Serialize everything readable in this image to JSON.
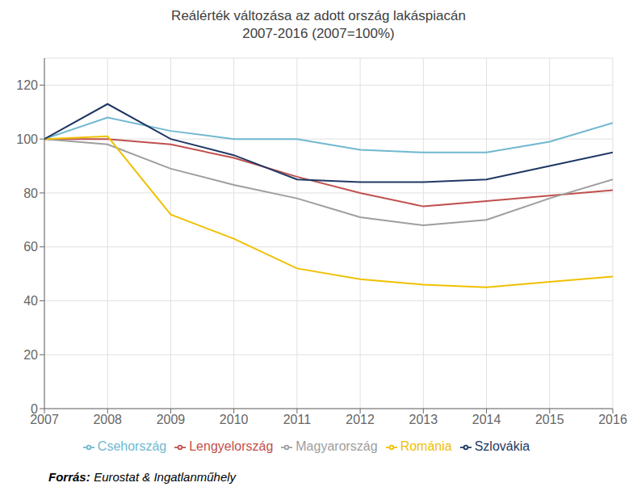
{
  "chart_data": {
    "type": "line",
    "title": "Reálérték változása az adott ország lakáspiacán\n2007-2016 (2007=100%)",
    "x": [
      2007,
      2008,
      2009,
      2010,
      2011,
      2012,
      2013,
      2014,
      2015,
      2016
    ],
    "xlim": [
      2007,
      2016
    ],
    "xticks": [
      2007,
      2008,
      2009,
      2010,
      2011,
      2012,
      2013,
      2014,
      2015,
      2016
    ],
    "series": [
      {
        "name": "Csehország",
        "color": "#70B8D0",
        "values": [
          100,
          108,
          103,
          100,
          100,
          96,
          95,
          95,
          99,
          106
        ]
      },
      {
        "name": "Lengyelország",
        "color": "#C0504D",
        "values": [
          100,
          100,
          98,
          93,
          86,
          80,
          75,
          77,
          79,
          81
        ]
      },
      {
        "name": "Magyarország",
        "color": "#9E9E9E",
        "values": [
          100,
          98,
          89,
          83,
          78,
          71,
          68,
          70,
          78,
          85
        ]
      },
      {
        "name": "Románia",
        "color": "#F0C000",
        "values": [
          100,
          101,
          72,
          63,
          52,
          48,
          46,
          45,
          47,
          49
        ]
      },
      {
        "name": "Szlovákia",
        "color": "#1F3864",
        "values": [
          100,
          113,
          100,
          94,
          85,
          84,
          84,
          85,
          90,
          95
        ]
      }
    ],
    "ylim": [
      0,
      130
    ],
    "yticks": [
      0,
      20,
      40,
      60,
      80,
      100,
      120
    ],
    "grid": true,
    "legend": "bottom",
    "annotations": [
      "Forrás:",
      "Eurostat & Ingatlanműhely"
    ]
  }
}
